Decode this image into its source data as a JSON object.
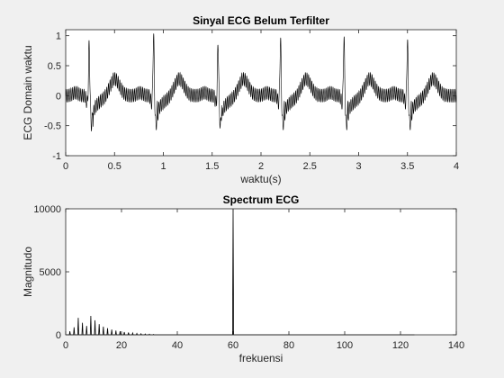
{
  "chart_data": [
    {
      "type": "line",
      "title": "Sinyal ECG Belum Terfilter",
      "xlabel": "waktu(s)",
      "ylabel": "ECG Domain waktu",
      "xlim": [
        0,
        4
      ],
      "ylim": [
        -1,
        1.1
      ],
      "xticks": [
        0,
        0.5,
        1,
        1.5,
        2,
        2.5,
        3,
        3.5,
        4
      ],
      "xtick_labels": [
        "0",
        "0.5",
        "1",
        "1.5",
        "2",
        "2.5",
        "3",
        "3.5",
        "4"
      ],
      "yticks": [
        -1,
        -0.5,
        0,
        0.5,
        1
      ],
      "ytick_labels": [
        "-1",
        "-0.5",
        "0",
        "0.5",
        "1"
      ],
      "grid": false,
      "line_color": "#000000",
      "r_peaks": [
        {
          "t": 0.24,
          "amp": 0.88
        },
        {
          "t": 0.9,
          "amp": 1.05
        },
        {
          "t": 1.56,
          "amp": 0.92
        },
        {
          "t": 2.2,
          "amp": 0.98
        },
        {
          "t": 2.85,
          "amp": 1.0
        },
        {
          "t": 3.5,
          "amp": 0.95
        }
      ],
      "s_min": -0.55,
      "noise_hz": 60,
      "noise_amplitude": 0.11
    },
    {
      "type": "line",
      "title": "Spectrum ECG",
      "xlabel": "frekuensi",
      "ylabel": "Magnitudo",
      "xlim": [
        0,
        140
      ],
      "ylim": [
        0,
        10000
      ],
      "xticks": [
        0,
        20,
        40,
        60,
        80,
        100,
        120,
        140
      ],
      "xtick_labels": [
        "0",
        "20",
        "40",
        "60",
        "80",
        "100",
        "120",
        "140"
      ],
      "yticks": [
        0,
        5000,
        10000
      ],
      "ytick_labels": [
        "0",
        "5000",
        "10000"
      ],
      "grid": false,
      "line_color": "#000000",
      "x_end": 125,
      "peaks": [
        {
          "f": 1.5,
          "mag": 280
        },
        {
          "f": 3,
          "mag": 600
        },
        {
          "f": 4.5,
          "mag": 1350
        },
        {
          "f": 6,
          "mag": 950
        },
        {
          "f": 7.5,
          "mag": 700
        },
        {
          "f": 9,
          "mag": 1500
        },
        {
          "f": 10.5,
          "mag": 1150
        },
        {
          "f": 12,
          "mag": 850
        },
        {
          "f": 13.5,
          "mag": 650
        },
        {
          "f": 15,
          "mag": 520
        },
        {
          "f": 16.5,
          "mag": 420
        },
        {
          "f": 18,
          "mag": 340
        },
        {
          "f": 19.5,
          "mag": 280
        },
        {
          "f": 21,
          "mag": 220
        },
        {
          "f": 22.5,
          "mag": 180
        },
        {
          "f": 24,
          "mag": 140
        },
        {
          "f": 25.5,
          "mag": 110
        },
        {
          "f": 27,
          "mag": 85
        },
        {
          "f": 28.5,
          "mag": 65
        },
        {
          "f": 30,
          "mag": 50
        },
        {
          "f": 31.5,
          "mag": 35
        },
        {
          "f": 60,
          "mag": 10000
        }
      ]
    }
  ]
}
